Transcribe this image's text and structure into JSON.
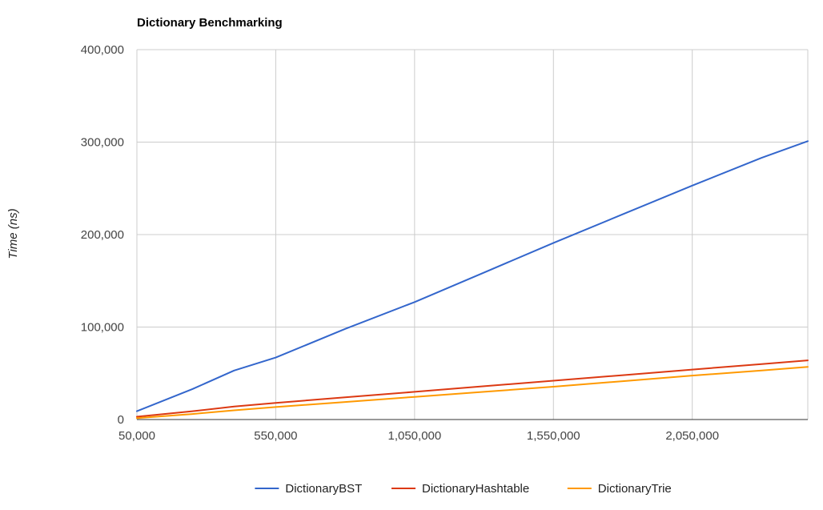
{
  "chart_data": {
    "type": "line",
    "title": "Dictionary Benchmarking",
    "xlabel": "",
    "ylabel": "Time (ns)",
    "x": [
      50000,
      250000,
      400000,
      550000,
      800000,
      1050000,
      1300000,
      1550000,
      1800000,
      2050000,
      2300000,
      2466000
    ],
    "xlim": [
      50000,
      2466000
    ],
    "ylim": [
      0,
      400000
    ],
    "x_ticks": [
      50000,
      550000,
      1050000,
      1550000,
      2050000
    ],
    "x_tick_labels": [
      "50,000",
      "550,000",
      "1,050,000",
      "1,550,000",
      "2,050,000"
    ],
    "y_ticks": [
      0,
      100000,
      200000,
      300000,
      400000
    ],
    "y_tick_labels": [
      "0",
      "100,000",
      "200,000",
      "300,000",
      "400,000"
    ],
    "grid": true,
    "legend_position": "bottom",
    "series": [
      {
        "name": "DictionaryBST",
        "color": "#3366cc",
        "values": [
          9000,
          33000,
          53000,
          67000,
          98000,
          127000,
          159000,
          191000,
          222000,
          253000,
          283000,
          301000
        ]
      },
      {
        "name": "DictionaryHashtable",
        "color": "#dc3912",
        "values": [
          3000,
          9000,
          14000,
          18000,
          24000,
          30000,
          36000,
          42000,
          48000,
          54000,
          60000,
          64000
        ]
      },
      {
        "name": "DictionaryTrie",
        "color": "#ff9900",
        "values": [
          1500,
          6000,
          10000,
          13500,
          19000,
          24500,
          30000,
          35500,
          41500,
          47500,
          53000,
          57000
        ]
      }
    ]
  }
}
